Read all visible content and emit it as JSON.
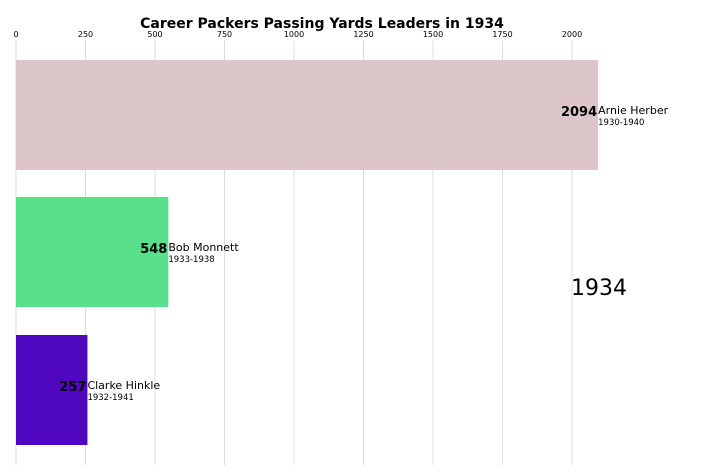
{
  "chart_data": {
    "type": "bar",
    "orientation": "horizontal",
    "title": "Career Packers Passing Yards Leaders in 1934",
    "xlim": [
      0,
      2200
    ],
    "x_ticks": [
      0,
      250,
      500,
      750,
      1000,
      1250,
      1500,
      1750,
      2000
    ],
    "grid": true,
    "year_label": "1934",
    "bars": [
      {
        "name": "Arnie Herber",
        "years": "1930-1940",
        "value": 2094,
        "color": "#ddc6c9"
      },
      {
        "name": "Bob Monnett",
        "years": "1933-1938",
        "value": 548,
        "color": "#59e08b"
      },
      {
        "name": "Clarke Hinkle",
        "years": "1932-1941",
        "value": 257,
        "color": "#4f07bf"
      }
    ]
  }
}
